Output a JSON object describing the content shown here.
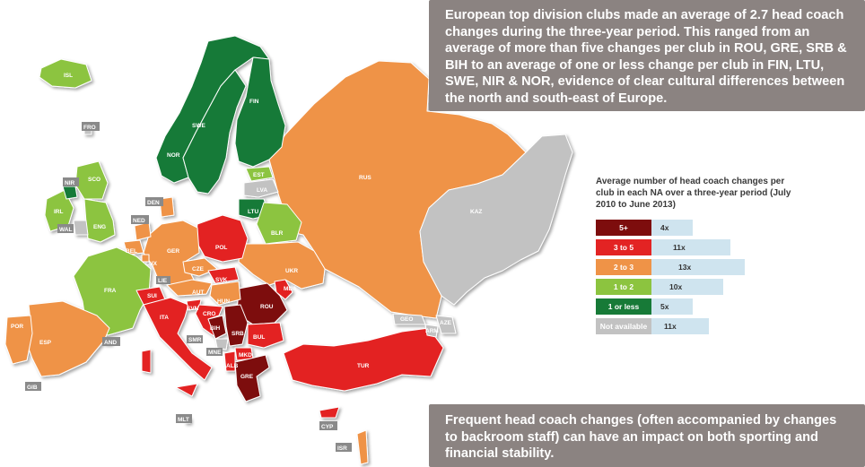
{
  "colors": {
    "five_plus": "#7d0d0d",
    "three_to_five": "#e32323",
    "two_to_three": "#ef9347",
    "one_to_two": "#8cc43f",
    "one_or_less": "#177a37",
    "not_available": "#c2c2c2",
    "callout_bg": "#8b8381",
    "count_bg": "#cfe4ef",
    "sea": "#ffffff"
  },
  "callout_top": "European top division clubs made an average of 2.7 head coach changes during the three-year period. This ranged from an average of more than five changes per club in ROU, GRE, SRB & BIH to an average of one or less change per club in FIN, LTU, SWE, NIR & NOR, evidence of clear cultural differences between the north and south-east of Europe.",
  "callout_bottom": "Frequent head coach changes (often accompanied by changes to backroom staff) can have an impact on both sporting and financial stability.",
  "legend": {
    "title": "Average number of head coach changes per club in each NA over a three-year period (July 2010 to June 2013)",
    "items": [
      {
        "label": "5+",
        "count": "4x",
        "color": "#7d0d0d"
      },
      {
        "label": "3 to 5",
        "count": "11x",
        "color": "#e32323"
      },
      {
        "label": "2 to 3",
        "count": "13x",
        "color": "#ef9347"
      },
      {
        "label": "1 to 2",
        "count": "10x",
        "color": "#8cc43f"
      },
      {
        "label": "1 or less",
        "count": "5x",
        "color": "#177a37"
      },
      {
        "label": "Not available",
        "count": "11x",
        "color": "#c2c2c2"
      }
    ]
  },
  "countries": {
    "ISL": "ISL",
    "FRO": "FRO",
    "NIR": "NIR",
    "SCO": "SCO",
    "IRL": "IRL",
    "WAL": "WAL",
    "ENG": "ENG",
    "NOR": "NOR",
    "SWE": "SWE",
    "FIN": "FIN",
    "EST": "EST",
    "LVA": "LVA",
    "LTU": "LTU",
    "RUS": "RUS",
    "KAZ": "KAZ",
    "DEN": "DEN",
    "NED": "NED",
    "BEL": "BEL",
    "LUX": "LUX",
    "GER": "GER",
    "POL": "POL",
    "BLR": "BLR",
    "UKR": "UKR",
    "CZE": "CZE",
    "SVK": "SVK",
    "AUT": "AUT",
    "HUN": "HUN",
    "MDA": "MDA",
    "ROU": "ROU",
    "FRA": "FRA",
    "SUI": "SUI",
    "LIE": "LIE",
    "ITA": "ITA",
    "SVN": "SVN",
    "CRO": "CRO",
    "BIH": "BIH",
    "SRB": "SRB",
    "MNE": "MNE",
    "SMR": "SMR",
    "ALB": "ALB",
    "MKD": "MKD",
    "BUL": "BUL",
    "GRE": "GRE",
    "TUR": "TUR",
    "GEO": "GEO",
    "ARM": "ARM",
    "AZE": "AZE",
    "CYP": "CYP",
    "ISR": "ISR",
    "MLT": "MLT",
    "ESP": "ESP",
    "POR": "POR",
    "AND": "AND",
    "GIB": "GIB"
  }
}
